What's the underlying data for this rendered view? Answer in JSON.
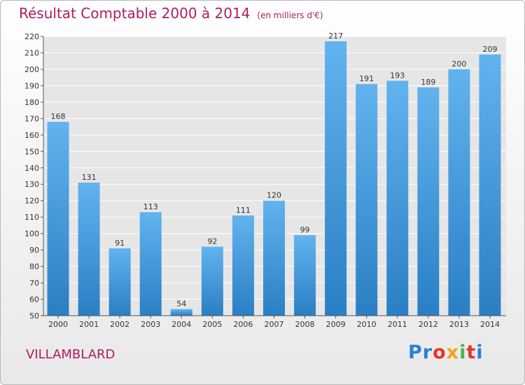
{
  "header": {
    "title": "Résultat Comptable 2000 à 2014",
    "subtitle": "(en milliers d'€)"
  },
  "footer": {
    "town": "VILLAMBLARD",
    "logo": [
      "Pr",
      "o",
      "x",
      "i",
      "t",
      "i"
    ]
  },
  "colors": {
    "bar_top": "#62b3ee",
    "bar_bottom": "#2a7fc4",
    "title": "#b01c5e",
    "grid": "#ffffff"
  },
  "chart_data": {
    "type": "bar",
    "title": "Résultat Comptable 2000 à 2014",
    "xlabel": "",
    "ylabel": "",
    "ylim": [
      50,
      220
    ],
    "yticks": [
      50,
      60,
      70,
      80,
      90,
      100,
      110,
      120,
      130,
      140,
      150,
      160,
      170,
      180,
      190,
      200,
      210,
      220
    ],
    "grid": true,
    "categories": [
      "2000",
      "2001",
      "2002",
      "2003",
      "2004",
      "2005",
      "2006",
      "2007",
      "2008",
      "2009",
      "2010",
      "2011",
      "2012",
      "2013",
      "2014"
    ],
    "values": [
      168,
      131,
      91,
      113,
      54,
      92,
      111,
      120,
      99,
      217,
      191,
      193,
      189,
      200,
      209
    ],
    "data_labels": [
      "168",
      "131",
      "91",
      "113",
      "54",
      "92",
      "111",
      "120",
      "99",
      "217",
      "191",
      "193",
      "189",
      "200",
      "209"
    ]
  }
}
